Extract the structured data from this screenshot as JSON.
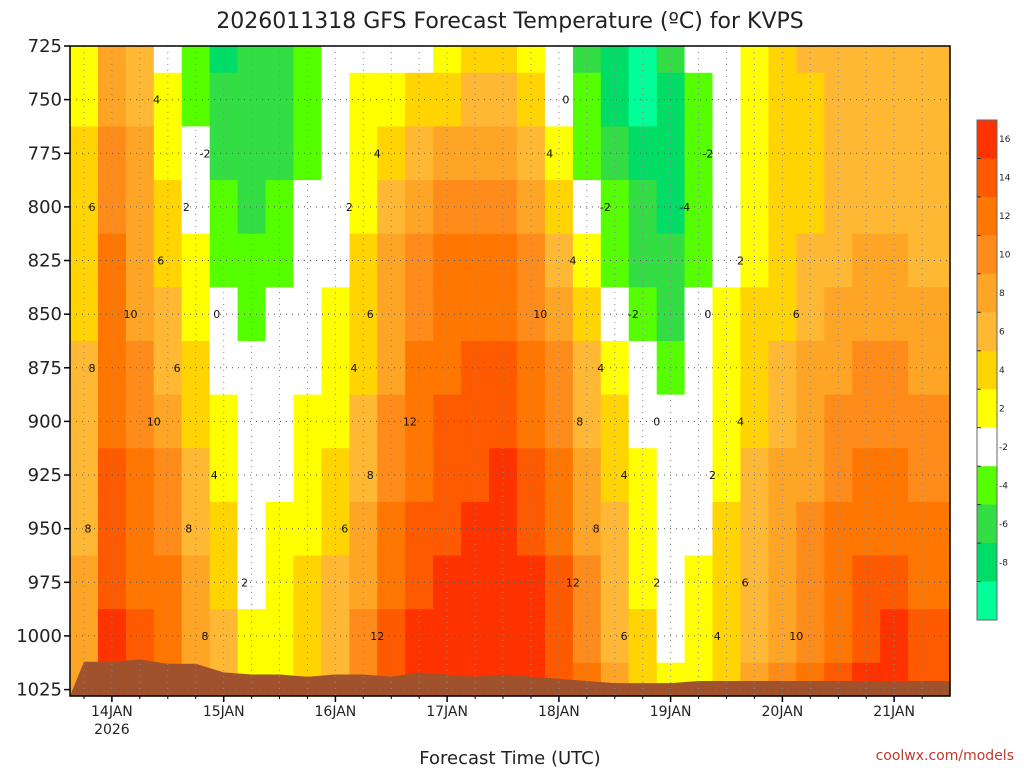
{
  "chart_data": {
    "type": "heatmap",
    "title": "2026011318 GFS Forecast Temperature (ºC) for KVPS",
    "xlabel": "Forecast Time (UTC)",
    "ylabel": "",
    "credit": "coolwx.com/models",
    "y_ticks": [
      "725",
      "750",
      "775",
      "800",
      "825",
      "850",
      "875",
      "900",
      "925",
      "950",
      "975",
      "1000",
      "1025"
    ],
    "y_values": [
      725,
      750,
      775,
      800,
      825,
      850,
      875,
      900,
      925,
      950,
      975,
      1000,
      1025
    ],
    "ylim": [
      1028,
      725
    ],
    "x_ticks": [
      {
        "label": "14JAN",
        "sub": "2026"
      },
      {
        "label": "15JAN",
        "sub": ""
      },
      {
        "label": "16JAN",
        "sub": ""
      },
      {
        "label": "17JAN",
        "sub": ""
      },
      {
        "label": "18JAN",
        "sub": ""
      },
      {
        "label": "19JAN",
        "sub": ""
      },
      {
        "label": "20JAN",
        "sub": ""
      },
      {
        "label": "21JAN",
        "sub": ""
      }
    ],
    "colorbar": {
      "labels": [
        "16",
        "14",
        "12",
        "10",
        "8",
        "6",
        "4",
        "2",
        "-2",
        "-4",
        "-6",
        "-8"
      ],
      "colors": [
        "#ff3300",
        "#ff5a00",
        "#ff7700",
        "#ff8c1a",
        "#ffa526",
        "#ffb833",
        "#ffd400",
        "#ffff00",
        "#ffffff",
        "#55ff00",
        "#33dd44",
        "#00dd66",
        "#00ff99"
      ]
    },
    "levels": [
      725,
      750,
      775,
      800,
      825,
      850,
      875,
      900,
      925,
      950,
      975,
      1000,
      1025
    ],
    "times_hours_since_14JAN00Z": [
      -6,
      0,
      6,
      12,
      18,
      24,
      30,
      36,
      42,
      48,
      54,
      60,
      66,
      72,
      78,
      84,
      90,
      96,
      102,
      108,
      114,
      120,
      126,
      132,
      138,
      144,
      150,
      156,
      162,
      168,
      174
    ],
    "temperature_C": [
      [
        3,
        8,
        6,
        1,
        -3,
        -6,
        -5,
        -4,
        -3,
        -1,
        0,
        -1,
        1,
        3,
        4,
        4,
        2,
        0,
        -4,
        -6,
        -8,
        -4,
        -1,
        0,
        2,
        4,
        6,
        6,
        6,
        6,
        6
      ],
      [
        3,
        9,
        7,
        2,
        -2,
        -5,
        -5,
        -4,
        -2,
        0,
        2,
        3,
        4,
        5,
        6,
        6,
        4,
        1,
        -3,
        -6,
        -8,
        -6,
        -2,
        0,
        2,
        4,
        5,
        6,
        6,
        6,
        6
      ],
      [
        4,
        10,
        8,
        3,
        -1,
        -4,
        -5,
        -4,
        -2,
        1,
        3,
        5,
        6,
        8,
        8,
        8,
        6,
        3,
        -2,
        -5,
        -6,
        -7,
        -3,
        0,
        2,
        4,
        5,
        6,
        6,
        6,
        6
      ],
      [
        4,
        11,
        8,
        4,
        1,
        -3,
        -4,
        -3,
        -1,
        1,
        3,
        6,
        8,
        10,
        10,
        10,
        8,
        4,
        0,
        -3,
        -5,
        -6,
        -2,
        0,
        2,
        4,
        5,
        6,
        7,
        7,
        6
      ],
      [
        5,
        12,
        9,
        5,
        2,
        -2,
        -3,
        -2,
        0,
        1,
        4,
        8,
        10,
        12,
        12,
        12,
        10,
        6,
        2,
        -2,
        -4,
        -5,
        -2,
        1,
        3,
        4,
        6,
        7,
        8,
        8,
        7
      ],
      [
        5,
        12,
        9,
        6,
        3,
        -1,
        -2,
        -1,
        0,
        2,
        5,
        9,
        11,
        12,
        13,
        13,
        11,
        8,
        4,
        0,
        -3,
        -4,
        -1,
        2,
        4,
        5,
        7,
        8,
        9,
        9,
        8
      ],
      [
        6,
        13,
        10,
        7,
        4,
        1,
        -1,
        0,
        1,
        2,
        5,
        9,
        12,
        13,
        14,
        14,
        12,
        10,
        6,
        2,
        -1,
        -2,
        0,
        2,
        4,
        6,
        8,
        9,
        10,
        10,
        9
      ],
      [
        6,
        13,
        11,
        9,
        5,
        2,
        0,
        1,
        2,
        3,
        6,
        10,
        13,
        14,
        15,
        15,
        13,
        11,
        7,
        4,
        1,
        -1,
        0,
        3,
        5,
        7,
        9,
        10,
        11,
        11,
        10
      ],
      [
        7,
        14,
        12,
        10,
        6,
        3,
        1,
        1,
        2,
        4,
        7,
        11,
        13,
        15,
        15,
        16,
        14,
        12,
        8,
        5,
        2,
        0,
        1,
        3,
        6,
        8,
        9,
        11,
        12,
        12,
        11
      ],
      [
        7,
        14,
        12,
        11,
        7,
        4,
        1,
        2,
        3,
        5,
        8,
        12,
        14,
        15,
        16,
        16,
        15,
        13,
        9,
        6,
        3,
        0,
        1,
        4,
        6,
        8,
        10,
        12,
        13,
        13,
        12
      ],
      [
        8,
        15,
        13,
        12,
        8,
        5,
        1,
        2,
        4,
        6,
        9,
        13,
        15,
        16,
        17,
        17,
        16,
        14,
        10,
        7,
        3,
        1,
        2,
        4,
        7,
        9,
        11,
        12,
        14,
        14,
        13
      ],
      [
        8,
        16,
        14,
        12,
        9,
        6,
        2,
        3,
        4,
        6,
        10,
        14,
        16,
        17,
        18,
        18,
        17,
        15,
        11,
        7,
        4,
        1,
        2,
        5,
        7,
        9,
        11,
        13,
        15,
        16,
        14
      ],
      [
        9,
        16,
        14,
        13,
        9,
        6,
        2,
        3,
        5,
        7,
        11,
        15,
        16,
        17,
        18,
        18,
        17,
        15,
        12,
        8,
        4,
        2,
        3,
        5,
        8,
        10,
        12,
        14,
        16,
        16,
        15
      ]
    ]
  }
}
